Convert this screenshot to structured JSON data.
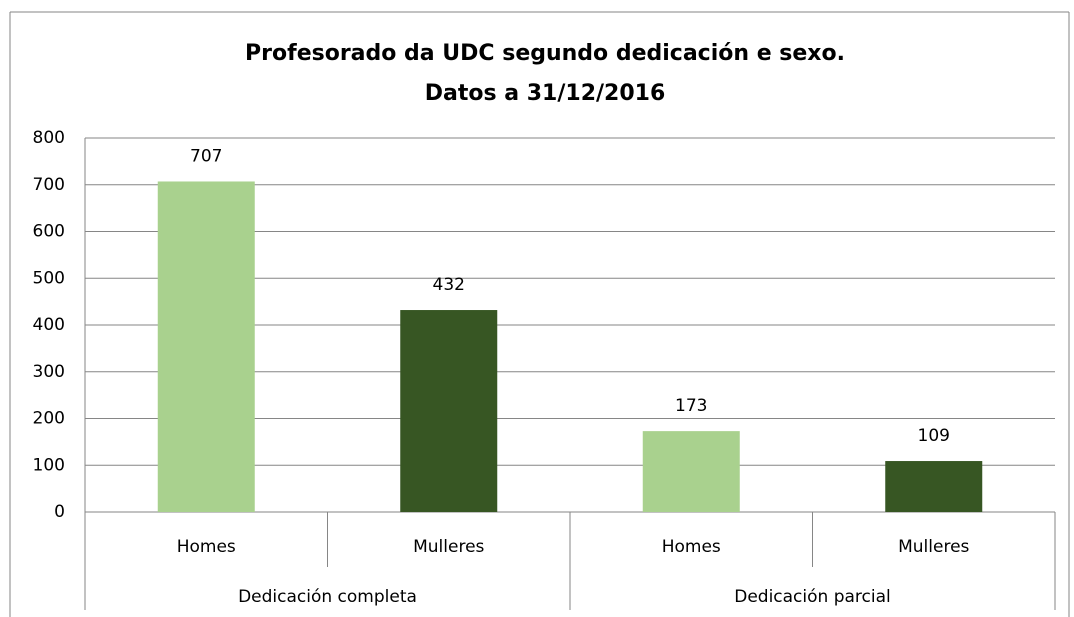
{
  "chart_data": {
    "type": "bar",
    "title": "Profesorado da UDC segundo dedicación e sexo.",
    "subtitle": "Datos a 31/12/2016",
    "groups": [
      {
        "name": "Dedicación completa",
        "categories": [
          "Homes",
          "Mulleres"
        ],
        "values": [
          707,
          432
        ]
      },
      {
        "name": "Dedicación parcial",
        "categories": [
          "Homes",
          "Mulleres"
        ],
        "values": [
          173,
          109
        ]
      }
    ],
    "colors": [
      "#a9d18e",
      "#375623"
    ],
    "ylim": [
      0,
      800
    ],
    "yticks": [
      0,
      100,
      200,
      300,
      400,
      500,
      600,
      700,
      800
    ],
    "grid": true
  }
}
